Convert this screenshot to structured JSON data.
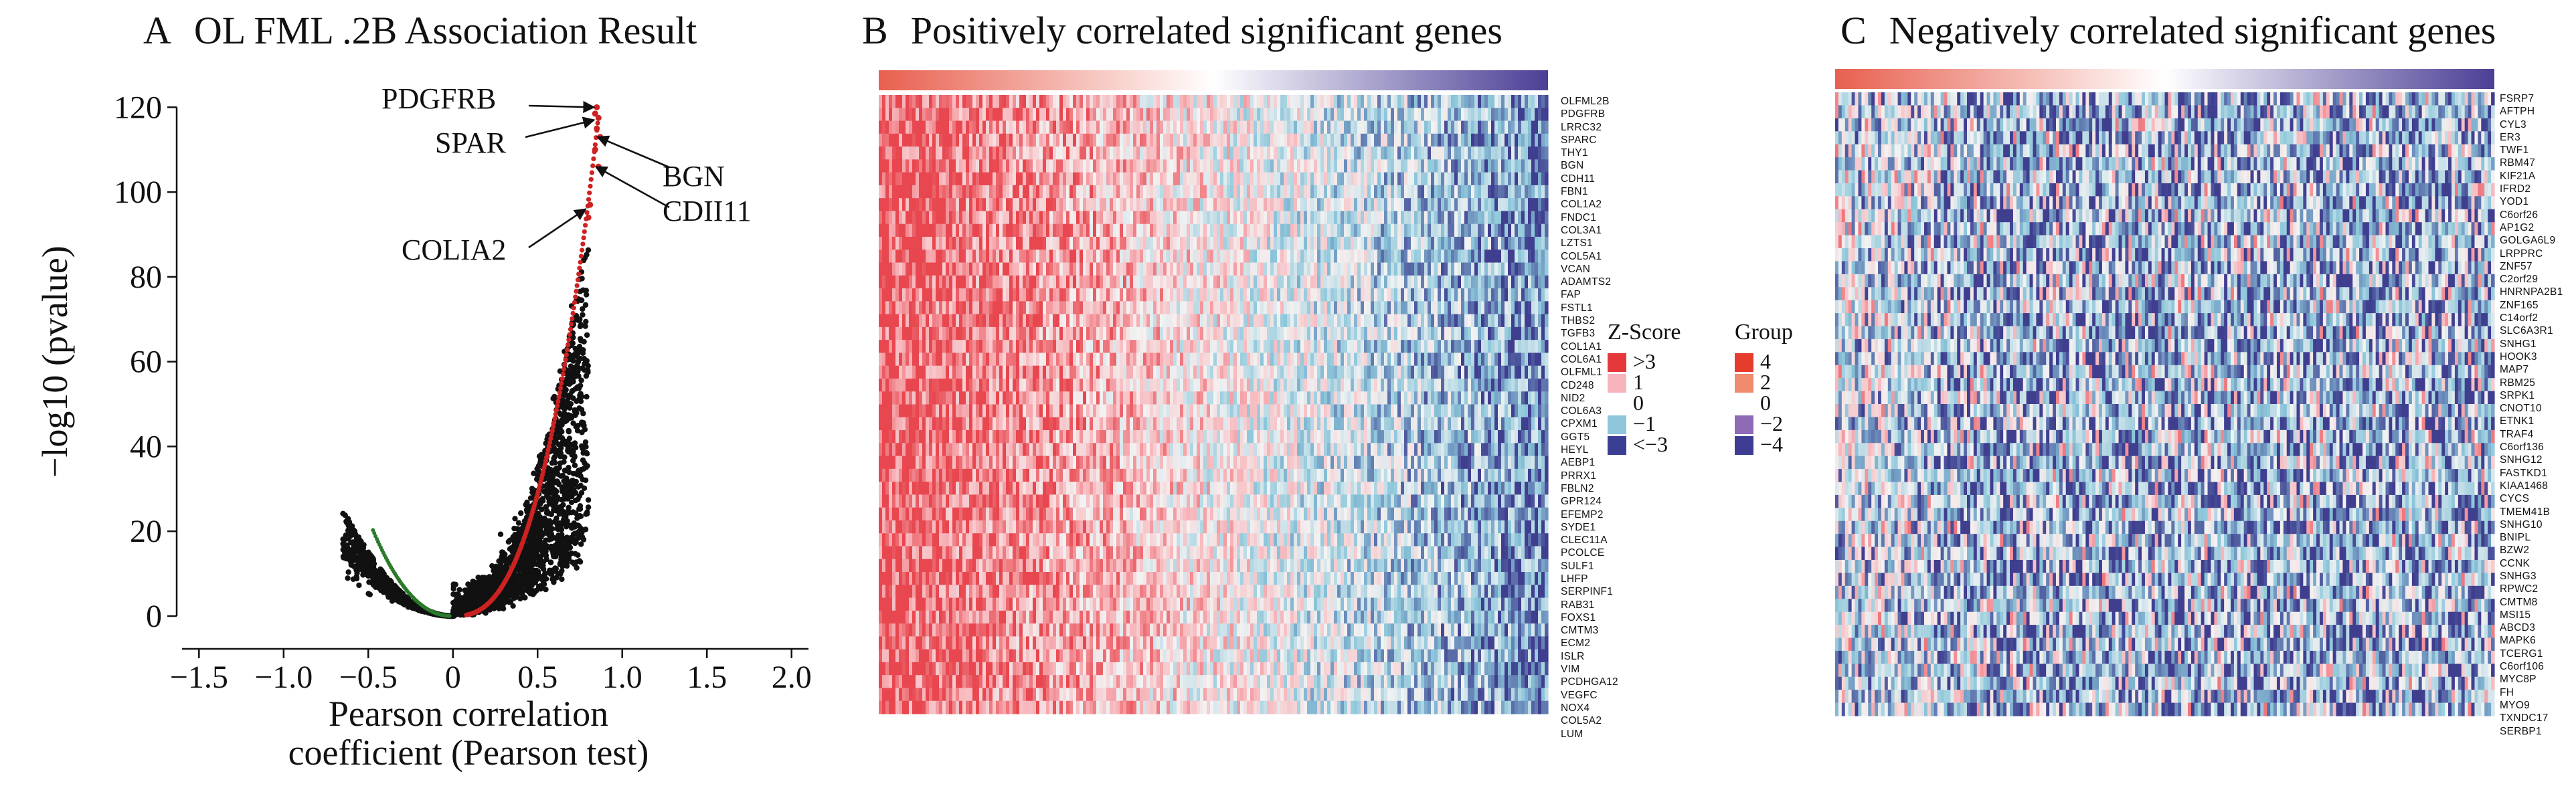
{
  "panels": {
    "a": {
      "letter": "A",
      "title": "OL FML .2B Association Result"
    },
    "b": {
      "letter": "B",
      "title": "Positively correlated significant genes"
    },
    "c": {
      "letter": "C",
      "title": "Negatively correlated significant genes"
    }
  },
  "chart_data": [
    {
      "type": "scatter",
      "title": "OL FML .2B Association Result",
      "xlabel": "Pearson correlation coefficient (Pearson test)",
      "xlabel_lines": [
        "Pearson correlation",
        "coefficient (Pearson test)"
      ],
      "ylabel": "−log10 (pvalue)",
      "xlim": [
        -1.6,
        2.1
      ],
      "ylim": [
        -3,
        124
      ],
      "xticks": [
        -1.5,
        -1.0,
        -0.5,
        0,
        0.5,
        1.0,
        1.5,
        2.0
      ],
      "xtick_labels": [
        "−1.5",
        "−1.0",
        "−0.5",
        "0",
        "0.5",
        "1.0",
        "1.5",
        "2.0"
      ],
      "yticks": [
        0,
        20,
        40,
        60,
        80,
        100,
        120
      ],
      "ytick_labels": [
        "0",
        "20",
        "40",
        "60",
        "80",
        "100",
        "120"
      ],
      "colors": {
        "all": "#111111",
        "positive": "#cc2222",
        "negative": "#2a7a2a"
      },
      "annotations": [
        {
          "label": "PDGFRB",
          "x": 0.85,
          "y": 120
        },
        {
          "label": "SPAR",
          "x": 0.85,
          "y": 117
        },
        {
          "label": "BGN",
          "x": 0.87,
          "y": 113
        },
        {
          "label": "CDII11",
          "x": 0.86,
          "y": 106
        },
        {
          "label": "COLIA2",
          "x": 0.8,
          "y": 96
        }
      ]
    },
    {
      "type": "heatmap",
      "title": "Positively correlated significant genes",
      "genes": [
        "OLFML2B",
        "PDGFRB",
        "LRRC32",
        "SPARC",
        "THY1",
        "BGN",
        "CDH11",
        "FBN1",
        "COL1A2",
        "FNDC1",
        "COL3A1",
        "LZTS1",
        "COL5A1",
        "VCAN",
        "ADAMTS2",
        "FAP",
        "FSTL1",
        "THBS2",
        "TGFB3",
        "COL1A1",
        "COL6A1",
        "OLFML1",
        "CD248",
        "NID2",
        "COL6A3",
        "CPXM1",
        "GGT5",
        "HEYL",
        "AEBP1",
        "PRRX1",
        "FBLN2",
        "GPR124",
        "EFEMP2",
        "SYDE1",
        "CLEC11A",
        "PCOLCE",
        "SULF1",
        "LHFP",
        "SERPINF1",
        "RAB31",
        "FOXS1",
        "CMTM3",
        "ECM2",
        "ISLR",
        "VIM",
        "PCDHGA12",
        "VEGFC",
        "NOX4",
        "COL5A2",
        "LUM"
      ],
      "bar_gradient": [
        "#e8604f",
        "#ffffff",
        "#4b3f96"
      ],
      "cell_gradient": [
        "#e8474f",
        "#f7b8bd",
        "#f3f3f3",
        "#8cc6da",
        "#3f3e8f"
      ]
    },
    {
      "type": "heatmap",
      "title": "Negatively correlated significant genes",
      "genes": [
        "FSRP7",
        "AFTPH",
        "CYL3",
        "ER3",
        "TWF1",
        "RBM47",
        "KIF21A",
        "IFRD2",
        "YOD1",
        "C6orf26",
        "AP1G2",
        "GOLGA6L9",
        "LRPPRC",
        "ZNF57",
        "C2orf29",
        "HNRNPA2B1",
        "ZNF165",
        "C14orf2",
        "SLC6A3R1",
        "SNHG1",
        "HOOK3",
        "MAP7",
        "RBM25",
        "SRPK1",
        "CNOT10",
        "ETNK1",
        "TRAF4",
        "C6orf136",
        "SNHG12",
        "FASTKD1",
        "KIAA1468",
        "CYCS",
        "TMEM41B",
        "SNHG10",
        "BNIPL",
        "BZW2",
        "CCNK",
        "SNHG3",
        "RPWC2",
        "CMTM8",
        "MSI15",
        "ABCD3",
        "MAPK6",
        "TCERG1",
        "C6orf106",
        "MYC8P",
        "FH",
        "MYO9",
        "TXNDC17",
        "SERBP1"
      ]
    }
  ],
  "zscore_legend": {
    "title": "Z-Score",
    "items": [
      {
        "label": ">3",
        "color": "#e5383b"
      },
      {
        "label": "1",
        "color": "#f6b3bc"
      },
      {
        "label": "0",
        "color": "#ffffff"
      },
      {
        "label": "−1",
        "color": "#8fc6dc"
      },
      {
        "label": "<−3",
        "color": "#3b3f93"
      }
    ]
  },
  "group_legend": {
    "title": "Group",
    "items": [
      {
        "label": "4",
        "color": "#e63c2e"
      },
      {
        "label": "2",
        "color": "#ef8a6c"
      },
      {
        "label": "0",
        "color": "#ffffff"
      },
      {
        "label": "−2",
        "color": "#8e6cb5"
      },
      {
        "label": "−4",
        "color": "#3e3c92"
      }
    ]
  }
}
